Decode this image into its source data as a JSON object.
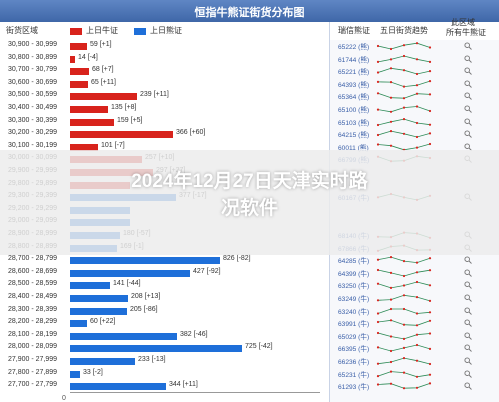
{
  "title": "恒指牛熊证街货分布图",
  "headers": {
    "range_col": "街货区域",
    "bull_legend": "上日牛证",
    "bear_legend": "上日熊证",
    "code_col": "瑞信熊证",
    "trend_col": "五日街货趋势",
    "right_col_line1": "此区域",
    "right_col_line2": "所有牛熊证"
  },
  "colors": {
    "bull": "#1e6fd9",
    "bear": "#d8231c",
    "header": "#3f67a8"
  },
  "rows": [
    {
      "range": "30,900 - 30,999",
      "type": "bear",
      "value": "59 [+1]",
      "code": "65222 (熊)",
      "len": 17
    },
    {
      "range": "30,800 - 30,899",
      "type": "bear",
      "value": "14 [-4]",
      "code": "61744 (熊)",
      "len": 5
    },
    {
      "range": "30,700 - 30,799",
      "type": "bear",
      "value": "68 [+7]",
      "code": "65221 (熊)",
      "len": 19
    },
    {
      "range": "30,600 - 30,699",
      "type": "bear",
      "value": "65 [+11]",
      "code": "64393 (熊)",
      "len": 18
    },
    {
      "range": "30,500 - 30,599",
      "type": "bear",
      "value": "239 [+11]",
      "code": "65364 (熊)",
      "len": 67
    },
    {
      "range": "30,400 - 30,499",
      "type": "bear",
      "value": "135 [+8]",
      "code": "65100 (熊)",
      "len": 38
    },
    {
      "range": "30,300 - 30,399",
      "type": "bear",
      "value": "159 [+5]",
      "code": "65103 (熊)",
      "len": 44
    },
    {
      "range": "30,200 - 30,299",
      "type": "bear",
      "value": "366 [+60]",
      "code": "64215 (熊)",
      "len": 103
    },
    {
      "range": "30,100 - 30,199",
      "type": "bear",
      "value": "101 [-7]",
      "code": "60011 (熊)",
      "len": 28
    },
    {
      "range": "30,000 - 30,099",
      "type": "bear",
      "value": "257 [+10]",
      "code": "66799 (熊)",
      "len": 72
    },
    {
      "range": "29,900 - 29,999",
      "type": "bear",
      "value": "297 [+27]",
      "code": "",
      "len": 83
    },
    {
      "range": "29,800 - 29,899",
      "type": "bear",
      "value": "",
      "code": "",
      "len": 60
    },
    {
      "range": "29,300 - 29,399",
      "type": "bull",
      "value": "377 [-17]",
      "code": "60167 (牛)",
      "len": 106
    },
    {
      "range": "29,200 - 29,299",
      "type": "bull",
      "value": "",
      "code": "",
      "len": 60
    },
    {
      "range": "29,000 - 29,099",
      "type": "bull",
      "value": "",
      "code": "",
      "len": 60
    },
    {
      "range": "28,900 - 28,999",
      "type": "bull",
      "value": "180 [-57]",
      "code": "68140 (牛)",
      "len": 50
    },
    {
      "range": "28,800 - 28,899",
      "type": "bull",
      "value": "169 [-1]",
      "code": "67866 (牛)",
      "len": 47
    },
    {
      "range": "28,700 - 28,799",
      "type": "bull",
      "value": "826 [-82]",
      "code": "64285 (牛)",
      "len": 150
    },
    {
      "range": "28,600 - 28,699",
      "type": "bull",
      "value": "427 [-92]",
      "code": "64399 (牛)",
      "len": 120
    },
    {
      "range": "28,500 - 28,599",
      "type": "bull",
      "value": "141 [-44]",
      "code": "63250 (牛)",
      "len": 40
    },
    {
      "range": "28,400 - 28,499",
      "type": "bull",
      "value": "208 [+13]",
      "code": "63249 (牛)",
      "len": 58
    },
    {
      "range": "28,300 - 28,399",
      "type": "bull",
      "value": "205 [-86]",
      "code": "63240 (牛)",
      "len": 57
    },
    {
      "range": "28,200 - 28,299",
      "type": "bull",
      "value": "60 [+22]",
      "code": "63991 (牛)",
      "len": 17
    },
    {
      "range": "28,100 - 28,199",
      "type": "bull",
      "value": "382 [-46]",
      "code": "65029 (牛)",
      "len": 107
    },
    {
      "range": "28,000 - 28,099",
      "type": "bull",
      "value": "725 [-42]",
      "code": "66395 (牛)",
      "len": 172
    },
    {
      "range": "27,900 - 27,999",
      "type": "bull",
      "value": "233 [-13]",
      "code": "66236 (牛)",
      "len": 65
    },
    {
      "range": "27,800 - 27,899",
      "type": "bull",
      "value": "33 [-2]",
      "code": "65231 (牛)",
      "len": 10
    },
    {
      "range": "27,700 - 27,799",
      "type": "bull",
      "value": "344 [+11]",
      "code": "61293 (牛)",
      "len": 96
    }
  ],
  "axis_label": "0",
  "overlay_title_line1": "2024年12月27日天津实时路",
  "overlay_title_line2": "况软件"
}
